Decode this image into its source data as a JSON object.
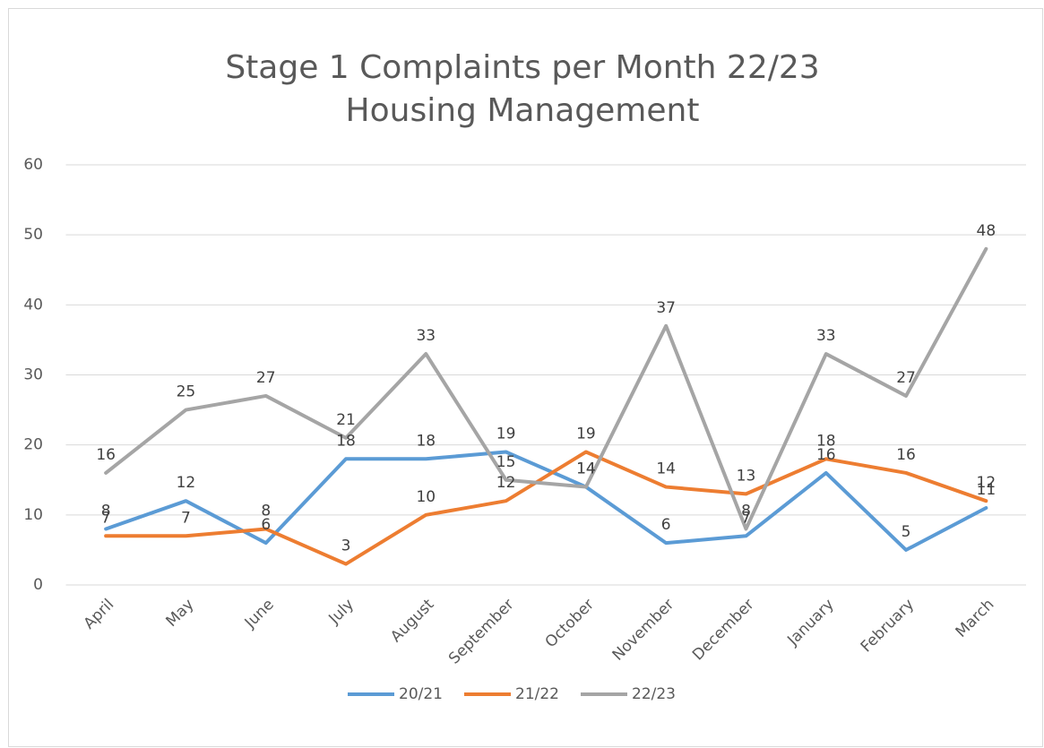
{
  "chart_data": {
    "type": "line",
    "title": [
      "Stage 1 Complaints per Month 22/23",
      "Housing Management"
    ],
    "categories": [
      "April",
      "May",
      "June",
      "July",
      "August",
      "September",
      "October",
      "November",
      "December",
      "January",
      "February",
      "March"
    ],
    "series": [
      {
        "name": "20/21",
        "color": "#5b9bd5",
        "values": [
          8,
          12,
          6,
          18,
          18,
          19,
          14,
          6,
          7,
          16,
          5,
          11
        ]
      },
      {
        "name": "21/22",
        "color": "#ed7d31",
        "values": [
          7,
          7,
          8,
          3,
          10,
          12,
          19,
          14,
          13,
          18,
          16,
          12
        ]
      },
      {
        "name": "22/23",
        "color": "#a5a5a5",
        "values": [
          16,
          25,
          27,
          21,
          33,
          15,
          14,
          37,
          8,
          33,
          27,
          48
        ]
      }
    ],
    "ylim": [
      0,
      60
    ],
    "yticks": [
      0,
      10,
      20,
      30,
      40,
      50,
      60
    ],
    "grid": true,
    "legend": "bottom"
  }
}
